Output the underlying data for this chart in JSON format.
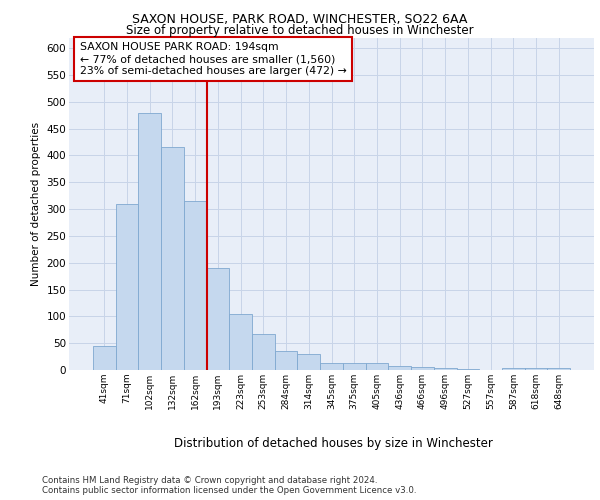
{
  "title1": "SAXON HOUSE, PARK ROAD, WINCHESTER, SO22 6AA",
  "title2": "Size of property relative to detached houses in Winchester",
  "xlabel": "Distribution of detached houses by size in Winchester",
  "ylabel": "Number of detached properties",
  "categories": [
    "41sqm",
    "71sqm",
    "102sqm",
    "132sqm",
    "162sqm",
    "193sqm",
    "223sqm",
    "253sqm",
    "284sqm",
    "314sqm",
    "345sqm",
    "375sqm",
    "405sqm",
    "436sqm",
    "466sqm",
    "496sqm",
    "527sqm",
    "557sqm",
    "587sqm",
    "618sqm",
    "648sqm"
  ],
  "values": [
    45,
    310,
    480,
    415,
    315,
    190,
    105,
    68,
    36,
    30,
    13,
    13,
    13,
    8,
    5,
    3,
    1,
    0,
    3,
    3,
    3
  ],
  "bar_color": "#c5d8ee",
  "bar_edge_color": "#7fa8d0",
  "grid_color": "#c8d4e8",
  "background_color": "#ffffff",
  "plot_bg_color": "#e8eef8",
  "vline_color": "#cc0000",
  "annotation_text": "SAXON HOUSE PARK ROAD: 194sqm\n← 77% of detached houses are smaller (1,560)\n23% of semi-detached houses are larger (472) →",
  "annotation_box_color": "#ffffff",
  "annotation_box_edge": "#cc0000",
  "footnote": "Contains HM Land Registry data © Crown copyright and database right 2024.\nContains public sector information licensed under the Open Government Licence v3.0.",
  "ylim": [
    0,
    620
  ],
  "yticks": [
    0,
    50,
    100,
    150,
    200,
    250,
    300,
    350,
    400,
    450,
    500,
    550,
    600
  ]
}
